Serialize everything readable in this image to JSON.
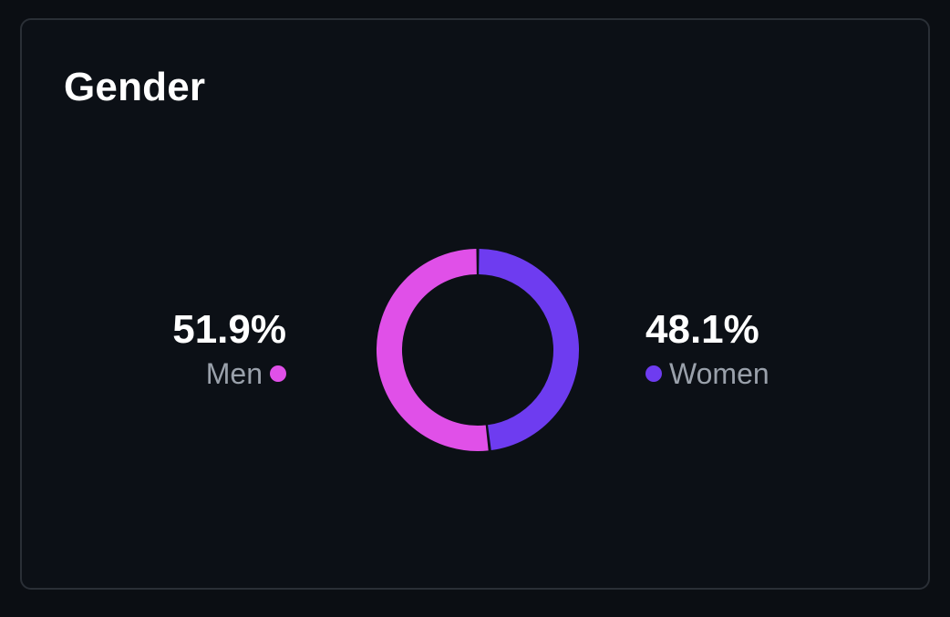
{
  "card": {
    "title": "Gender"
  },
  "chart_data": {
    "type": "pie",
    "variant": "donut",
    "title": "Gender",
    "slices": [
      {
        "label": "Men",
        "value": 51.9,
        "display": "51.9%",
        "color": "#e050e8"
      },
      {
        "label": "Women",
        "value": 48.1,
        "display": "48.1%",
        "color": "#6e3cf0"
      }
    ],
    "start": "top",
    "direction": "women-clockwise-from-top"
  }
}
